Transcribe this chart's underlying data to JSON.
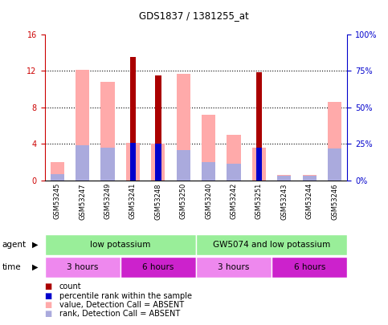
{
  "title": "GDS1837 / 1381255_at",
  "samples": [
    "GSM53245",
    "GSM53247",
    "GSM53249",
    "GSM53241",
    "GSM53248",
    "GSM53250",
    "GSM53240",
    "GSM53242",
    "GSM53251",
    "GSM53243",
    "GSM53244",
    "GSM53246"
  ],
  "red_bars": [
    0,
    0,
    0,
    13.5,
    11.5,
    0,
    0,
    0,
    11.8,
    0,
    0,
    0
  ],
  "blue_bars": [
    0,
    0,
    0,
    4.1,
    4.0,
    0,
    0,
    0,
    3.6,
    0,
    0,
    0
  ],
  "pink_bars": [
    2.0,
    12.1,
    10.8,
    4.1,
    4.0,
    11.7,
    7.2,
    5.0,
    3.6,
    0.6,
    0.6,
    8.6
  ],
  "lightblue_bars": [
    0.7,
    3.8,
    3.6,
    0,
    0,
    3.3,
    2.0,
    1.8,
    0,
    0.5,
    0.5,
    3.5
  ],
  "ylim": [
    0,
    16
  ],
  "yticks_left": [
    0,
    4,
    8,
    12,
    16
  ],
  "yticks_right": [
    0,
    25,
    50,
    75,
    100
  ],
  "ylabel_left_color": "#cc0000",
  "ylabel_right_color": "#0000cc",
  "right_labels": [
    "0%",
    "25%",
    "50%",
    "75%",
    "100%"
  ],
  "agent_labels": [
    "low potassium",
    "GW5074 and low potassium"
  ],
  "agent_color": "#99ee99",
  "time_labels": [
    "3 hours",
    "6 hours",
    "3 hours",
    "6 hours"
  ],
  "time_color_3h": "#ee88ee",
  "time_color_6h": "#cc22cc",
  "bar_width": 0.55,
  "red_color": "#aa0000",
  "blue_color": "#0000cc",
  "pink_color": "#ffaaaa",
  "lightblue_color": "#aaaadd",
  "bg_color": "#ffffff",
  "plot_bg_color": "#ffffff",
  "xtick_bg_color": "#cccccc"
}
